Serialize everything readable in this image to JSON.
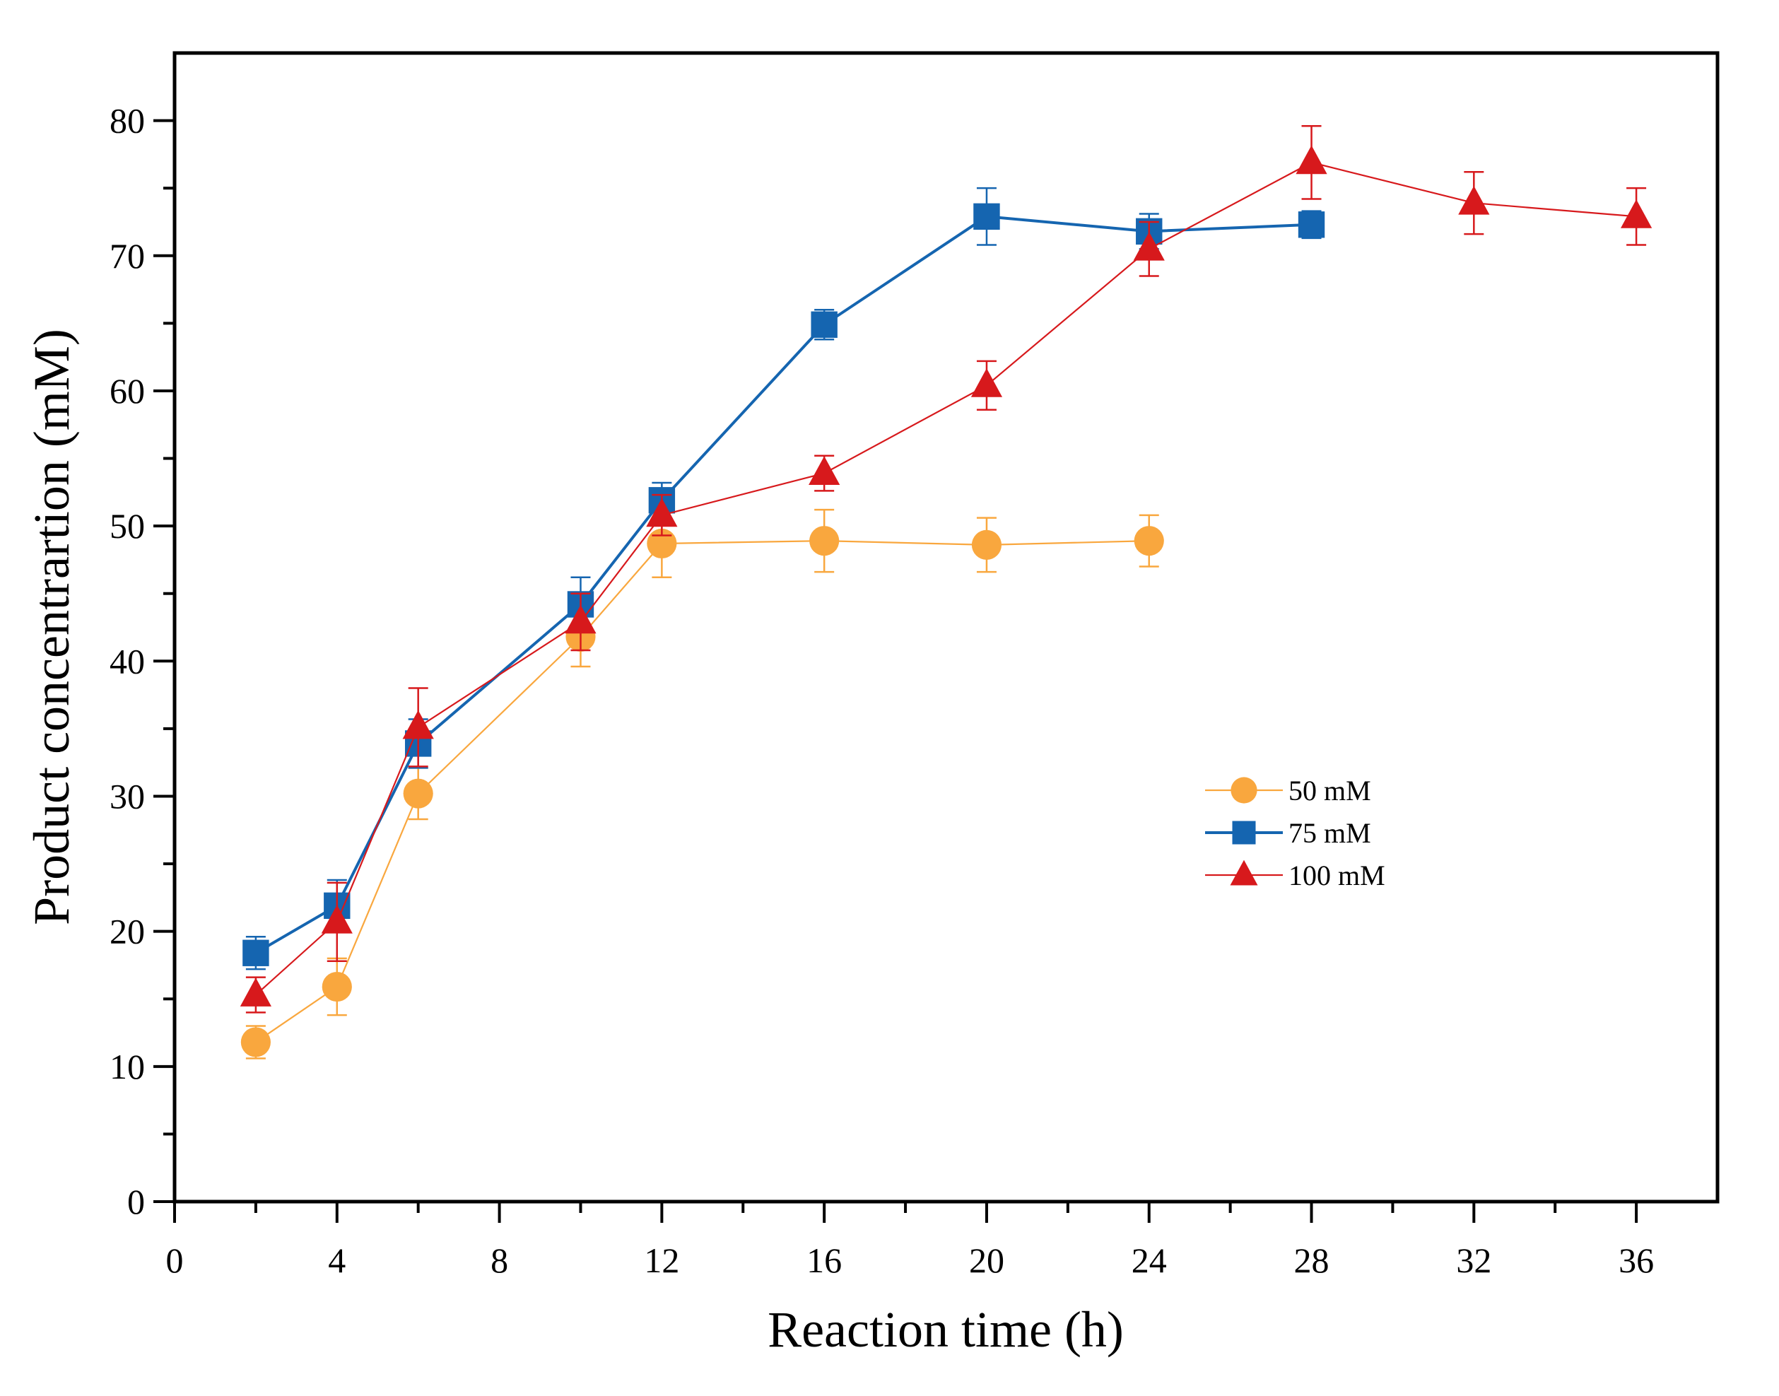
{
  "chart_data": {
    "type": "line",
    "title": "",
    "xlabel": "Reaction time (h)",
    "ylabel": "Product concentrartion (mM)",
    "xlim": [
      0,
      38
    ],
    "ylim": [
      0,
      85
    ],
    "x_ticks": [
      0,
      4,
      8,
      12,
      16,
      20,
      24,
      28,
      32,
      36
    ],
    "x_tick_labels": [
      "0",
      "4",
      "8",
      "12",
      "16",
      "20",
      "24",
      "28",
      "32",
      "36"
    ],
    "x_minor_ticks": [
      2,
      6,
      10,
      14,
      18,
      22,
      26,
      30,
      34
    ],
    "y_ticks": [
      0,
      10,
      20,
      30,
      40,
      50,
      60,
      70,
      80
    ],
    "y_tick_labels": [
      "0",
      "10",
      "20",
      "30",
      "40",
      "50",
      "60",
      "70",
      "80"
    ],
    "y_minor_ticks": [
      5,
      15,
      25,
      35,
      45,
      55,
      65,
      75
    ],
    "grid": false,
    "legend_position": "center-right",
    "series": [
      {
        "name": "50 mM",
        "color": "#F9A73E",
        "marker": "circle",
        "line_style": "thin",
        "x": [
          2,
          4,
          6,
          10,
          12,
          16,
          20,
          24
        ],
        "values": [
          11.8,
          15.9,
          30.2,
          41.8,
          48.7,
          48.9,
          48.6,
          48.9
        ],
        "errors": [
          1.2,
          2.1,
          1.9,
          2.2,
          2.5,
          2.3,
          2.0,
          1.9
        ]
      },
      {
        "name": "75 mM",
        "color": "#1565B0",
        "marker": "square",
        "line_style": "thick",
        "x": [
          2,
          4,
          6,
          10,
          12,
          16,
          20,
          24,
          28
        ],
        "values": [
          18.4,
          21.9,
          33.9,
          44.2,
          51.9,
          64.9,
          72.9,
          71.8,
          72.3
        ],
        "errors": [
          1.2,
          1.9,
          1.8,
          2.0,
          1.3,
          1.1,
          2.1,
          1.3,
          1.0
        ]
      },
      {
        "name": "100 mM",
        "color": "#D7191C",
        "marker": "triangle",
        "line_style": "thin",
        "x": [
          2,
          4,
          6,
          10,
          12,
          16,
          20,
          24,
          28,
          32,
          36
        ],
        "values": [
          15.3,
          20.7,
          35.1,
          42.9,
          50.8,
          53.9,
          60.4,
          70.5,
          76.9,
          73.9,
          72.9
        ],
        "errors": [
          1.3,
          2.9,
          2.9,
          2.1,
          1.5,
          1.3,
          1.8,
          2.0,
          2.7,
          2.3,
          2.1
        ]
      }
    ]
  }
}
